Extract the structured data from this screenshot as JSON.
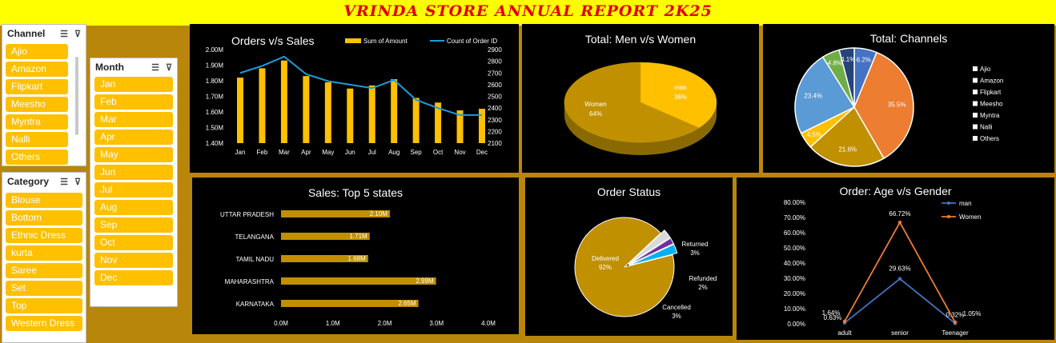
{
  "report_title": "VRINDA STORE ANNUAL REPORT 2K25",
  "colors": {
    "gold": "#ffc000",
    "mustard": "#c09000",
    "background": "#b8860b",
    "line_blue": "#1e9bd7",
    "orange": "#ed7d31",
    "blue": "#4472c4",
    "title_red": "#e00000"
  },
  "slicers": {
    "channel": {
      "label": "Channel",
      "icons": [
        "multi-select-icon",
        "clear-filter-icon"
      ],
      "items": [
        "Ajio",
        "Amazon",
        "Flipkart",
        "Meesho",
        "Myntra",
        "Nalli",
        "Others"
      ]
    },
    "month": {
      "label": "Month",
      "icons": [
        "multi-select-icon",
        "clear-filter-icon"
      ],
      "items": [
        "Jan",
        "Feb",
        "Mar",
        "Apr",
        "May",
        "Jun",
        "Jul",
        "Aug",
        "Sep",
        "Oct",
        "Nov",
        "Dec"
      ]
    },
    "category": {
      "label": "Category",
      "icons": [
        "multi-select-icon",
        "clear-filter-icon"
      ],
      "items": [
        "Blouse",
        "Bottom",
        "Ethnic Dress",
        "kurta",
        "Saree",
        "Set",
        "Top",
        "Western Dress"
      ]
    }
  },
  "chart_data": [
    {
      "id": "orders-vs-sales",
      "type": "bar",
      "title": "Orders v/s Sales",
      "categories": [
        "Jan",
        "Feb",
        "Mar",
        "Apr",
        "May",
        "Jun",
        "Jul",
        "Aug",
        "Sep",
        "Oct",
        "Nov",
        "Dec"
      ],
      "series": [
        {
          "name": "Sum of Amount",
          "type": "bar",
          "axis": "left",
          "values": [
            1.82,
            1.88,
            1.93,
            1.83,
            1.79,
            1.75,
            1.77,
            1.81,
            1.69,
            1.66,
            1.61,
            1.62
          ]
        },
        {
          "name": "Count of Order ID",
          "type": "line",
          "axis": "right",
          "values": [
            2700,
            2760,
            2840,
            2690,
            2630,
            2600,
            2570,
            2640,
            2470,
            2400,
            2340,
            2340
          ]
        }
      ],
      "ylim": [
        1.4,
        2.0
      ],
      "y_ticks": [
        "1.40M",
        "1.50M",
        "1.60M",
        "1.70M",
        "1.80M",
        "1.90M",
        "2.00M"
      ],
      "y2lim": [
        2100,
        2900
      ],
      "y2_ticks": [
        "2100",
        "2200",
        "2300",
        "2400",
        "2500",
        "2600",
        "2700",
        "2800",
        "2900"
      ],
      "legend": "top"
    },
    {
      "id": "men-vs-women",
      "type": "pie",
      "title": "Total: Men v/s Women",
      "slices": [
        {
          "label": "man",
          "value": 36,
          "text": "36%",
          "color": "#ffc000"
        },
        {
          "label": "Women",
          "value": 64,
          "text": "64%",
          "color": "#c09000"
        }
      ]
    },
    {
      "id": "channels",
      "type": "pie",
      "title": "Total: Channels",
      "slices": [
        {
          "label": "Ajio",
          "value": 6.2,
          "text": "6.2%",
          "color": "#4472c4"
        },
        {
          "label": "Amazon",
          "value": 35.5,
          "text": "35.5%",
          "color": "#ed7d31"
        },
        {
          "label": "Flipkart",
          "value": 21.6,
          "text": "21.6%",
          "color": "#c09000"
        },
        {
          "label": "Meesho",
          "value": 4.5,
          "text": "4.5%",
          "color": "#ffc000"
        },
        {
          "label": "Myntra",
          "value": 23.4,
          "text": "23.4%",
          "color": "#5b9bd5"
        },
        {
          "label": "Nalli",
          "value": 4.8,
          "text": "4.8%",
          "color": "#70ad47"
        },
        {
          "label": "Others",
          "value": 4.1,
          "text": "4.1%",
          "color": "#264478"
        }
      ],
      "legend": "right"
    },
    {
      "id": "top-5-states",
      "type": "bar",
      "orientation": "horizontal",
      "title": "Sales: Top 5 states",
      "categories": [
        "UTTAR PRADESH",
        "TELANGANA",
        "TAMIL NADU",
        "MAHARASHTRA",
        "KARNATAKA"
      ],
      "values": [
        2.1,
        1.71,
        1.68,
        2.99,
        2.65
      ],
      "value_labels": [
        "2.10M",
        "1.71M",
        "1.68M",
        "2.99M",
        "2.65M"
      ],
      "xlim": [
        0,
        4
      ],
      "x_ticks": [
        "0.0M",
        "1.0M",
        "2.0M",
        "3.0M",
        "4.0M"
      ]
    },
    {
      "id": "order-status",
      "type": "pie",
      "title": "Order Status",
      "slices": [
        {
          "label": "Delivered",
          "value": 92,
          "text": "92%",
          "color": "#c09000"
        },
        {
          "label": "Returned",
          "value": 3,
          "text": "3%",
          "color": "#d9d9d9"
        },
        {
          "label": "Refunded",
          "value": 2,
          "text": "2%",
          "color": "#7030a0"
        },
        {
          "label": "Cancelled",
          "value": 3,
          "text": "3%",
          "color": "#00b0f0"
        }
      ]
    },
    {
      "id": "age-vs-gender",
      "type": "line",
      "title": "Order: Age v/s Gender",
      "categories": [
        "adult",
        "senior",
        "Teenager"
      ],
      "series": [
        {
          "name": "man",
          "values": [
            0.63,
            29.63,
            0.32
          ],
          "labels": [
            "0.63%",
            "29.63%",
            "0.32%"
          ],
          "color": "#4472c4"
        },
        {
          "name": "Women",
          "values": [
            1.64,
            66.72,
            1.05
          ],
          "labels": [
            "1.64%",
            "66.72%",
            "1.05%"
          ],
          "color": "#ed7d31"
        }
      ],
      "ylim": [
        0,
        80
      ],
      "y_ticks": [
        "0.00%",
        "10.00%",
        "20.00%",
        "30.00%",
        "40.00%",
        "50.00%",
        "60.00%",
        "70.00%",
        "80.00%"
      ],
      "legend": "top"
    }
  ]
}
